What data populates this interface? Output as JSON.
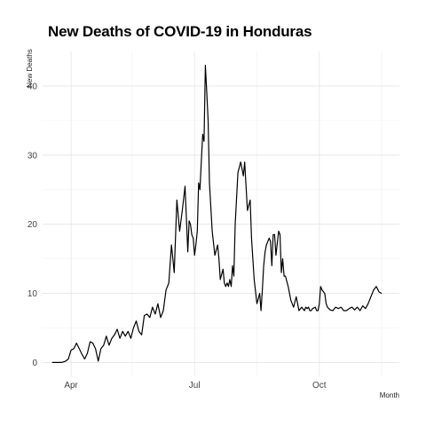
{
  "chart_data": {
    "type": "line",
    "title": "New Deaths of COVID-19 in Honduras",
    "xlabel": "Month",
    "ylabel": "New Deaths",
    "x_tick_labels": [
      "Apr",
      "Jul",
      "Oct"
    ],
    "y_tick_labels": [
      "0",
      "10",
      "20",
      "30",
      "40"
    ],
    "xlim": [
      "2020-03-11",
      "2020-11-29"
    ],
    "ylim": [
      -2,
      45
    ],
    "grid": true,
    "legend": "none",
    "series": [
      {
        "color": "#000000",
        "x": [
          "2020-03-18",
          "2020-03-25",
          "2020-03-28",
          "2020-03-30",
          "2020-04-01",
          "2020-04-03",
          "2020-04-05",
          "2020-04-07",
          "2020-04-09",
          "2020-04-11",
          "2020-04-13",
          "2020-04-15",
          "2020-04-17",
          "2020-04-19",
          "2020-04-21",
          "2020-04-23",
          "2020-04-25",
          "2020-04-27",
          "2020-04-29",
          "2020-05-01",
          "2020-05-03",
          "2020-05-05",
          "2020-05-07",
          "2020-05-09",
          "2020-05-11",
          "2020-05-13",
          "2020-05-15",
          "2020-05-17",
          "2020-05-19",
          "2020-05-21",
          "2020-05-23",
          "2020-05-25",
          "2020-05-27",
          "2020-05-29",
          "2020-05-31",
          "2020-06-02",
          "2020-06-04",
          "2020-06-06",
          "2020-06-08",
          "2020-06-10",
          "2020-06-12",
          "2020-06-14",
          "2020-06-16",
          "2020-06-18",
          "2020-06-20",
          "2020-06-22",
          "2020-06-24",
          "2020-06-26",
          "2020-06-27",
          "2020-06-28",
          "2020-06-29",
          "2020-06-30",
          "2020-07-01",
          "2020-07-02",
          "2020-07-03",
          "2020-07-04",
          "2020-07-05",
          "2020-07-06",
          "2020-07-07",
          "2020-07-08",
          "2020-07-09",
          "2020-07-10",
          "2020-07-11",
          "2020-07-12",
          "2020-07-14",
          "2020-07-16",
          "2020-07-18",
          "2020-07-19",
          "2020-07-20",
          "2020-07-22",
          "2020-07-23",
          "2020-07-24",
          "2020-07-25",
          "2020-07-26",
          "2020-07-27",
          "2020-07-28",
          "2020-07-29",
          "2020-07-30",
          "2020-07-31",
          "2020-08-02",
          "2020-08-04",
          "2020-08-06",
          "2020-08-07",
          "2020-08-09",
          "2020-08-11",
          "2020-08-12",
          "2020-08-14",
          "2020-08-16",
          "2020-08-18",
          "2020-08-19",
          "2020-08-20",
          "2020-08-21",
          "2020-08-22",
          "2020-08-23",
          "2020-08-25",
          "2020-08-26",
          "2020-08-27",
          "2020-08-28",
          "2020-08-29",
          "2020-08-30",
          "2020-09-01",
          "2020-09-02",
          "2020-09-03",
          "2020-09-04",
          "2020-09-05",
          "2020-09-06",
          "2020-09-08",
          "2020-09-10",
          "2020-09-12",
          "2020-09-14",
          "2020-09-16",
          "2020-09-18",
          "2020-09-20",
          "2020-09-21",
          "2020-09-22",
          "2020-09-23",
          "2020-09-24",
          "2020-09-25",
          "2020-09-26",
          "2020-09-28",
          "2020-09-29",
          "2020-09-30",
          "2020-10-01",
          "2020-10-02",
          "2020-10-03",
          "2020-10-05",
          "2020-10-06",
          "2020-10-07",
          "2020-10-08",
          "2020-10-09",
          "2020-10-11",
          "2020-10-13",
          "2020-10-15",
          "2020-10-17",
          "2020-10-19",
          "2020-10-21",
          "2020-10-23",
          "2020-10-25",
          "2020-10-27",
          "2020-10-29",
          "2020-10-31",
          "2020-11-02",
          "2020-11-04",
          "2020-11-06",
          "2020-11-08",
          "2020-11-10",
          "2020-11-12",
          "2020-11-14",
          "2020-11-16"
        ],
        "y": [
          0,
          0,
          0.2,
          0.5,
          1.8,
          2.0,
          2.8,
          2.0,
          1.2,
          0.5,
          1.3,
          3.0,
          2.8,
          2.0,
          0.2,
          2.0,
          2.5,
          3.8,
          2.5,
          3.5,
          4.0,
          4.8,
          3.5,
          4.5,
          3.8,
          4.5,
          3.5,
          5.0,
          6.0,
          4.5,
          4.0,
          6.8,
          7.0,
          6.5,
          8.0,
          7.0,
          8.5,
          6.5,
          7.5,
          10.5,
          11.5,
          17.0,
          13.0,
          23.5,
          19.0,
          22.0,
          25.5,
          16.0,
          20.5,
          20.0,
          18.5,
          18.0,
          15.5,
          17.0,
          19.0,
          26.0,
          25.0,
          29.0,
          33.0,
          32.0,
          43.0,
          39.0,
          35.0,
          26.0,
          19.0,
          15.5,
          17.0,
          15.0,
          12.0,
          13.5,
          11.5,
          11.0,
          11.5,
          11.0,
          12.0,
          11.0,
          14.0,
          12.5,
          20.0,
          27.5,
          29.0,
          27.0,
          29.0,
          22.0,
          23.5,
          18.0,
          12.0,
          8.5,
          10.0,
          7.5,
          10.5,
          14.0,
          16.0,
          17.0,
          18.0,
          17.5,
          14.0,
          18.5,
          18.5,
          15.5,
          19.0,
          18.5,
          13.0,
          15.0,
          12.5,
          12.5,
          11.0,
          9.0,
          8.0,
          9.5,
          7.5,
          8.0,
          7.5,
          8.0,
          7.8,
          8.0,
          7.5,
          7.5,
          7.8,
          8.0,
          7.5,
          7.5,
          8.5,
          11.0,
          10.5,
          10.0,
          8.5,
          8.0,
          7.8,
          7.6,
          7.5,
          8.0,
          7.8,
          8.0,
          7.5,
          7.5,
          7.8,
          8.0,
          7.6,
          8.0,
          7.5,
          8.2,
          7.8,
          8.5,
          9.5,
          10.5,
          11.0,
          10.2,
          10.0
        ]
      }
    ]
  }
}
